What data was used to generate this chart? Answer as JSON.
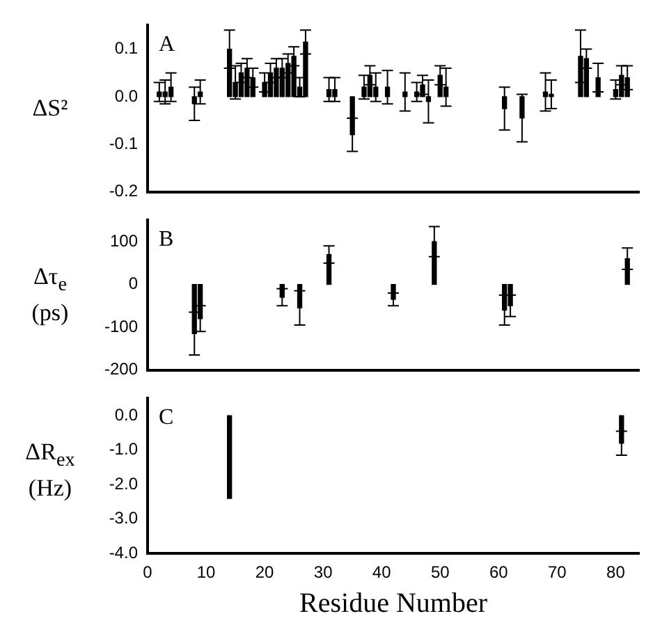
{
  "chart_data": [
    {
      "type": "bar",
      "annotations": [
        "A"
      ],
      "ylabel": "ΔS²",
      "xlim": [
        0,
        84
      ],
      "xticks": [
        0,
        10,
        20,
        30,
        40,
        50,
        60,
        70,
        80
      ],
      "ylim": [
        -0.2,
        0.15
      ],
      "yticks": [
        {
          "value": -0.2,
          "label": "-0.2"
        },
        {
          "value": -0.1,
          "label": "-0.1"
        },
        {
          "value": 0,
          "label": "0.0"
        },
        {
          "value": 0.1,
          "label": "0.1"
        }
      ],
      "tick_labels": "y",
      "grid": false,
      "legend": false,
      "x": [
        2,
        3,
        4,
        8,
        9,
        14,
        15,
        16,
        17,
        18,
        20,
        21,
        22,
        23,
        24,
        25,
        26,
        27,
        31,
        32,
        35,
        37,
        38,
        39,
        41,
        44,
        46,
        47,
        48,
        50,
        51,
        61,
        64,
        68,
        69,
        74,
        75,
        77,
        80,
        81,
        82
      ],
      "series": [
        {
          "color": "#000000",
          "values": [
            0.01,
            0.01,
            0.02,
            -0.015,
            0.01,
            0.1,
            0.03,
            0.05,
            0.06,
            0.04,
            0.03,
            0.05,
            0.06,
            0.06,
            0.07,
            0.085,
            0.02,
            0.115,
            0.015,
            0.015,
            -0.08,
            0.02,
            0.045,
            0.02,
            0.02,
            0.01,
            0.01,
            0.025,
            -0.01,
            0.045,
            0.02,
            -0.025,
            -0.045,
            0.01,
            0.005,
            0.085,
            0.08,
            0.04,
            0.015,
            0.045,
            0.04
          ],
          "errors": [
            0.02,
            0.025,
            0.03,
            0.035,
            0.025,
            0.04,
            0.035,
            0.02,
            0.02,
            0.02,
            0.02,
            0.02,
            0.02,
            0.02,
            0.02,
            0.02,
            0.02,
            0.025,
            0.025,
            0.025,
            0.035,
            0.025,
            0.02,
            0.03,
            0.035,
            0.04,
            0.02,
            0.02,
            0.045,
            0.02,
            0.04,
            0.045,
            0.05,
            0.04,
            0.03,
            0.055,
            0.02,
            0.03,
            0.02,
            0.02,
            0.025
          ]
        }
      ]
    },
    {
      "type": "bar",
      "annotations": [
        "B"
      ],
      "ylabel": "Δτ$_{e}$ (ps)",
      "xlim": [
        0,
        84
      ],
      "xticks": [
        0,
        10,
        20,
        30,
        40,
        50,
        60,
        70,
        80
      ],
      "ylim": [
        -200,
        150
      ],
      "yticks": [
        -200,
        -100,
        0,
        100
      ],
      "tick_labels": "y",
      "grid": false,
      "legend": false,
      "x": [
        8,
        9,
        23,
        26,
        31,
        42,
        49,
        61,
        62,
        82
      ],
      "series": [
        {
          "color": "#000000",
          "values": [
            -115,
            -80,
            -30,
            -55,
            70,
            -35,
            100,
            -60,
            -50,
            60
          ],
          "errors": [
            50,
            30,
            20,
            40,
            20,
            15,
            35,
            35,
            25,
            25
          ]
        }
      ]
    },
    {
      "type": "bar",
      "annotations": [
        "C"
      ],
      "ylabel": "ΔR$_{ex}$ (Hz)",
      "xlabel": "Residue Number",
      "xlim": [
        0,
        84
      ],
      "xticks": [
        0,
        10,
        20,
        30,
        40,
        50,
        60,
        70,
        80
      ],
      "ylim": [
        -4,
        0.5
      ],
      "yticks": [
        {
          "value": -4,
          "label": "-4.0"
        },
        {
          "value": -3,
          "label": "-3.0"
        },
        {
          "value": -2,
          "label": "-2.0"
        },
        {
          "value": -1,
          "label": "-1.0"
        },
        {
          "value": 0,
          "label": "0.0"
        }
      ],
      "grid": false,
      "legend": false,
      "x": [
        14,
        81
      ],
      "series": [
        {
          "color": "#000000",
          "values": [
            -2.4,
            -0.8
          ],
          "errors": [
            null,
            0.35
          ]
        }
      ]
    }
  ]
}
